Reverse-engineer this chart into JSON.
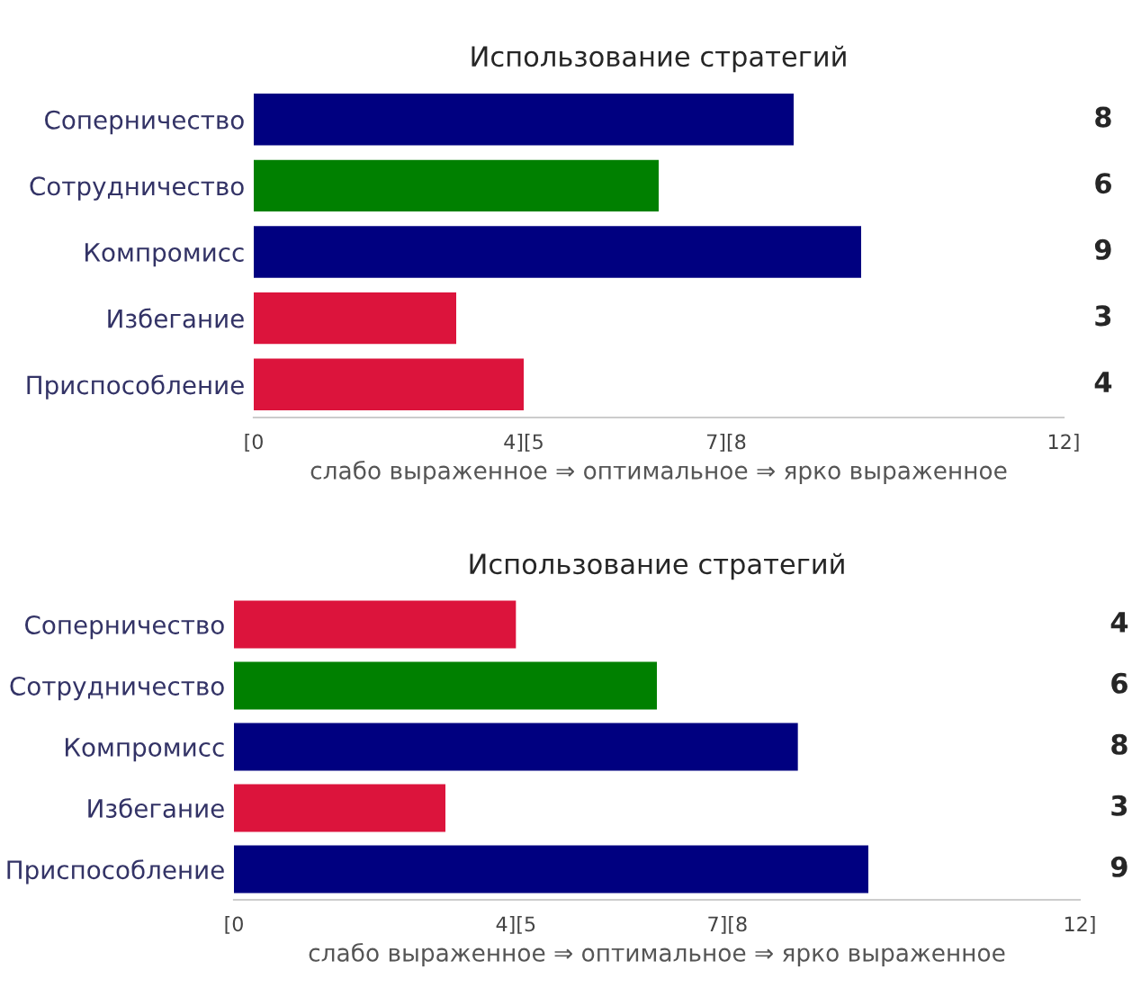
{
  "chart_data": [
    {
      "type": "bar",
      "orientation": "horizontal",
      "title": "Использование стратегий",
      "xlabel": "слабо выраженное ⇒ оптимальное ⇒ ярко выраженное",
      "categories": [
        "Соперничество",
        "Сотрудничество",
        "Компромисс",
        "Избегание",
        "Приспособление"
      ],
      "values": [
        8,
        6,
        9,
        3,
        4
      ],
      "colors": [
        "#000080",
        "#008000",
        "#000080",
        "#dc143c",
        "#dc143c"
      ],
      "xlim": [
        0,
        12
      ],
      "xticks": [
        {
          "value": 0,
          "label": "[0"
        },
        {
          "value": 4,
          "label": "4][5"
        },
        {
          "value": 7,
          "label": "7][8"
        },
        {
          "value": 12,
          "label": "12]"
        }
      ],
      "data_labels": true,
      "grid": false,
      "legend": false
    },
    {
      "type": "bar",
      "orientation": "horizontal",
      "title": "Использование стратегий",
      "xlabel": "слабо выраженное ⇒ оптимальное ⇒ ярко выраженное",
      "categories": [
        "Соперничество",
        "Сотрудничество",
        "Компромисс",
        "Избегание",
        "Приспособление"
      ],
      "values": [
        4,
        6,
        8,
        3,
        9
      ],
      "colors": [
        "#dc143c",
        "#008000",
        "#000080",
        "#dc143c",
        "#000080"
      ],
      "xlim": [
        0,
        12
      ],
      "xticks": [
        {
          "value": 0,
          "label": "[0"
        },
        {
          "value": 4,
          "label": "4][5"
        },
        {
          "value": 7,
          "label": "7][8"
        },
        {
          "value": 12,
          "label": "12]"
        }
      ],
      "data_labels": true,
      "grid": false,
      "legend": false
    }
  ]
}
